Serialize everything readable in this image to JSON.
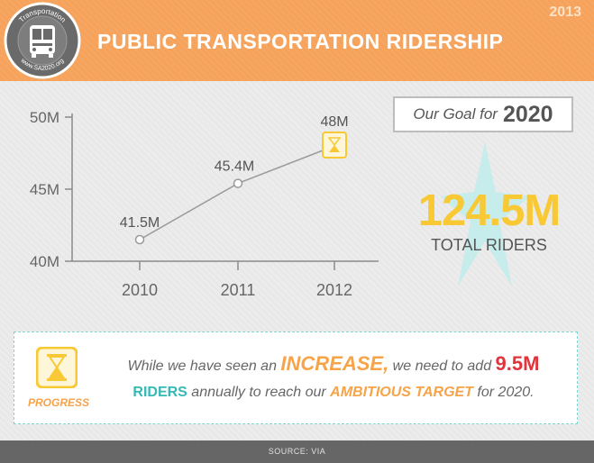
{
  "header": {
    "title": "PUBLIC TRANSPORTATION RIDERSHIP",
    "year": "2013",
    "logo_top_text": "Transportation",
    "logo_bottom_text": "www.SA2020.org"
  },
  "goal": {
    "label": "Our Goal for",
    "year": "2020",
    "value": "124.5M",
    "value_label": "TOTAL RIDERS"
  },
  "chart_data": {
    "type": "line",
    "x": [
      "2010",
      "2011",
      "2012"
    ],
    "values": [
      41.5,
      45.4,
      48
    ],
    "data_labels": [
      "41.5M",
      "45.4M",
      "48M"
    ],
    "yticks": [
      40,
      45,
      50
    ],
    "ytick_labels": [
      "40M",
      "45M",
      "50M"
    ],
    "ylim": [
      40,
      50
    ],
    "grid": false,
    "colors": {
      "line": "#9a9a9a",
      "axis": "#8a8a8a",
      "text": "#666666",
      "highlight": "#f8c935"
    }
  },
  "progress": {
    "label": "PROGRESS",
    "line1": {
      "part1": "While we have seen an ",
      "increase": "INCREASE,",
      "part2": " we need to add ",
      "amount": "9.5M"
    },
    "line2": {
      "riders": "RIDERS",
      "part1": " annually to reach our ",
      "target": "AMBITIOUS TARGET",
      "part2": " for 2020."
    }
  },
  "footer": {
    "source": "SOURCE: VIA"
  },
  "colors": {
    "header_bg": "#f6a25b",
    "accent_yellow": "#f8c935",
    "accent_orange": "#f7a348",
    "accent_red": "#e2343c",
    "accent_teal": "#35b9b5",
    "footer_bg": "#666666"
  }
}
